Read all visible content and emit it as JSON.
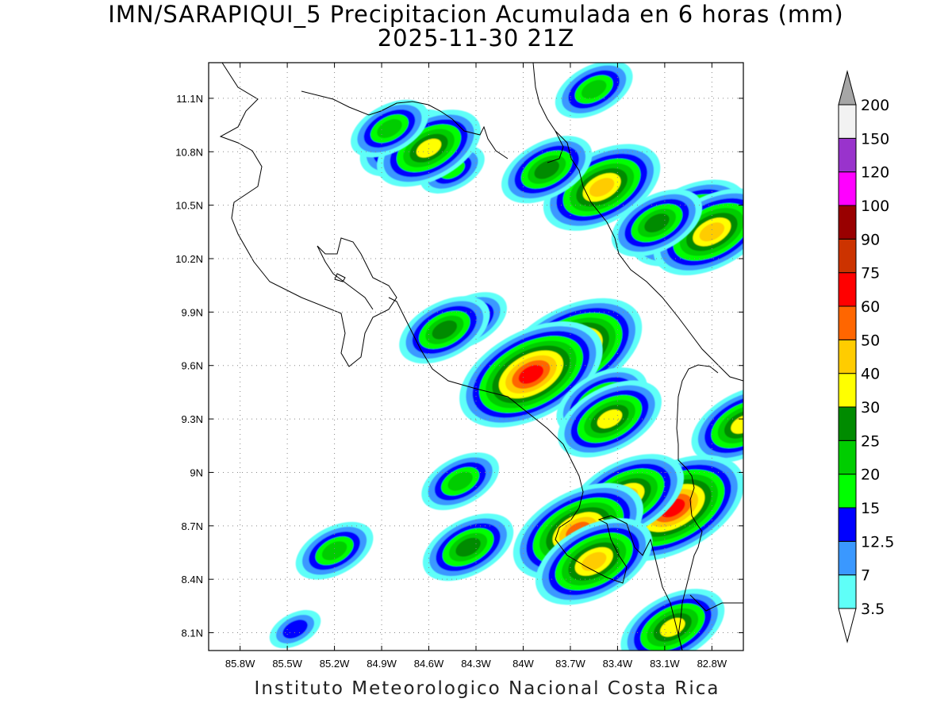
{
  "title": {
    "line1": "IMN/SARAPIQUI_5 Precipitacion Acumulada en 6 horas (mm)",
    "line2": "2025-11-30 21Z"
  },
  "footer": "Instituto Meteorologico Nacional Costa Rica",
  "map": {
    "lon_range": [
      -86.0,
      -82.6
    ],
    "lat_range": [
      8.0,
      11.3
    ],
    "lon_ticks": [
      {
        "v": -85.8,
        "label": "85.8W"
      },
      {
        "v": -85.5,
        "label": "85.5W"
      },
      {
        "v": -85.2,
        "label": "85.2W"
      },
      {
        "v": -84.9,
        "label": "84.9W"
      },
      {
        "v": -84.6,
        "label": "84.6W"
      },
      {
        "v": -84.3,
        "label": "84.3W"
      },
      {
        "v": -84.0,
        "label": "84W"
      },
      {
        "v": -83.7,
        "label": "83.7W"
      },
      {
        "v": -83.4,
        "label": "83.4W"
      },
      {
        "v": -83.1,
        "label": "83.1W"
      },
      {
        "v": -82.8,
        "label": "82.8W"
      }
    ],
    "lat_ticks": [
      {
        "v": 11.1,
        "label": "11.1N"
      },
      {
        "v": 10.8,
        "label": "10.8N"
      },
      {
        "v": 10.5,
        "label": "10.5N"
      },
      {
        "v": 10.2,
        "label": "10.2N"
      },
      {
        "v": 9.9,
        "label": "9.9N"
      },
      {
        "v": 9.6,
        "label": "9.6N"
      },
      {
        "v": 9.3,
        "label": "9.3N"
      },
      {
        "v": 9.0,
        "label": "9N"
      },
      {
        "v": 8.7,
        "label": "8.7N"
      },
      {
        "v": 8.4,
        "label": "8.4N"
      },
      {
        "v": 8.1,
        "label": "8.1N"
      }
    ],
    "grid": "dotted",
    "precip_cells": [
      {
        "lon": -84.75,
        "lat": 10.85,
        "value": 25
      },
      {
        "lon": -84.45,
        "lat": 10.7,
        "value": 15
      },
      {
        "lon": -84.6,
        "lat": 10.82,
        "value": 30
      },
      {
        "lon": -84.85,
        "lat": 10.93,
        "value": 20
      },
      {
        "lon": -83.5,
        "lat": 10.6,
        "value": 40
      },
      {
        "lon": -83.85,
        "lat": 10.7,
        "value": 25
      },
      {
        "lon": -83.55,
        "lat": 11.15,
        "value": 20
      },
      {
        "lon": -82.95,
        "lat": 10.4,
        "value": 40
      },
      {
        "lon": -82.8,
        "lat": 10.35,
        "value": 40
      },
      {
        "lon": -83.15,
        "lat": 10.4,
        "value": 25
      },
      {
        "lon": -83.7,
        "lat": 9.68,
        "value": 60
      },
      {
        "lon": -83.95,
        "lat": 9.55,
        "value": 60
      },
      {
        "lon": -84.35,
        "lat": 9.85,
        "value": 20
      },
      {
        "lon": -84.5,
        "lat": 9.8,
        "value": 25
      },
      {
        "lon": -83.5,
        "lat": 9.4,
        "value": 25
      },
      {
        "lon": -83.45,
        "lat": 9.3,
        "value": 30
      },
      {
        "lon": -82.6,
        "lat": 9.27,
        "value": 30
      },
      {
        "lon": -83.05,
        "lat": 8.8,
        "value": 60
      },
      {
        "lon": -83.35,
        "lat": 8.86,
        "value": 40
      },
      {
        "lon": -83.65,
        "lat": 8.67,
        "value": 50
      },
      {
        "lon": -83.55,
        "lat": 8.5,
        "value": 40
      },
      {
        "lon": -84.35,
        "lat": 8.58,
        "value": 25
      },
      {
        "lon": -85.2,
        "lat": 8.56,
        "value": 20
      },
      {
        "lon": -83.05,
        "lat": 8.13,
        "value": 30
      },
      {
        "lon": -85.45,
        "lat": 8.12,
        "value": 12.5
      },
      {
        "lon": -84.4,
        "lat": 8.95,
        "value": 20
      }
    ]
  },
  "colorbar": {
    "levels": [
      "3.5",
      "7",
      "12.5",
      "15",
      "20",
      "25",
      "30",
      "40",
      "50",
      "60",
      "75",
      "90",
      "100",
      "120",
      "150",
      "200"
    ],
    "colors": [
      "#5ffff8",
      "#3a98ff",
      "#0000ff",
      "#00ff00",
      "#00cd00",
      "#008b00",
      "#ffff00",
      "#ffcc00",
      "#ff6600",
      "#ff0000",
      "#cc3300",
      "#990000",
      "#ff00ff",
      "#9933cc",
      "#f2f2f2"
    ],
    "max_color": "#a6a6a6"
  }
}
